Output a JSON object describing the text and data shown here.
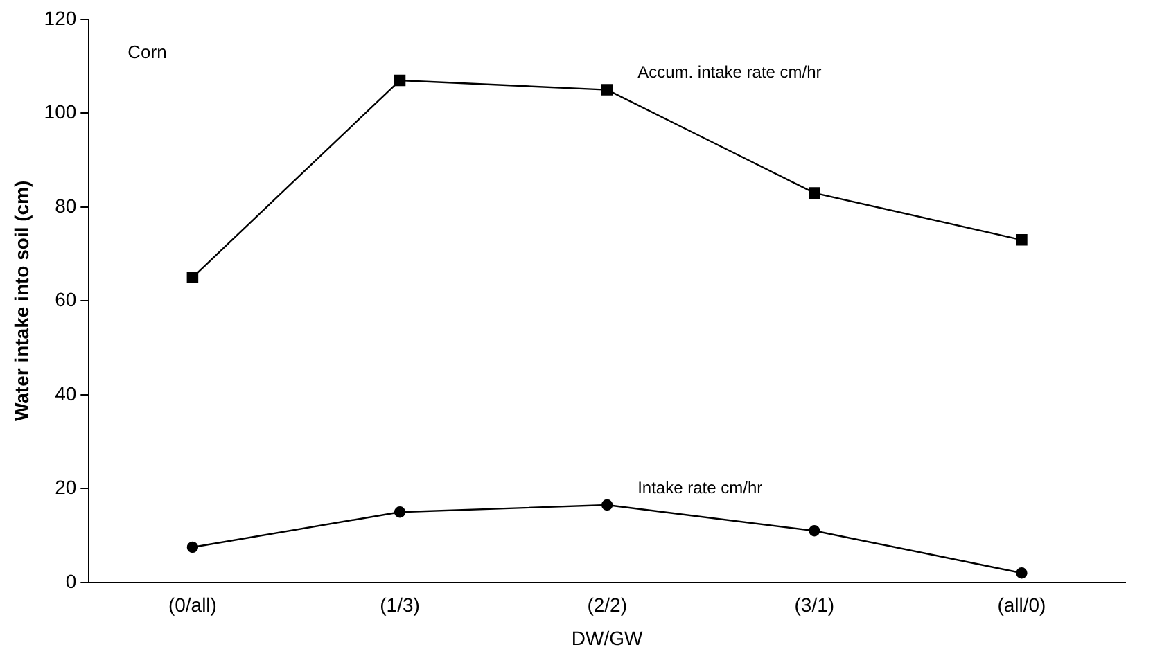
{
  "chart_data": {
    "type": "line",
    "xlabel": "DW/GW",
    "ylabel": "Water intake into soil (cm)",
    "categories": [
      "(0/all)",
      "(1/3)",
      "(2/2)",
      "(3/1)",
      "(all/0)"
    ],
    "series": [
      {
        "name": "Accum. intake rate cm/hr",
        "color": "#000000",
        "marker": "square",
        "values": [
          65,
          107,
          105,
          83,
          73
        ]
      },
      {
        "name": "Intake rate cm/hr",
        "color": "#000000",
        "marker": "circle",
        "values": [
          7.5,
          15,
          16.5,
          11,
          2
        ]
      }
    ],
    "ylim": [
      0,
      120
    ],
    "yticks": [
      0,
      20,
      40,
      60,
      80,
      100,
      120
    ],
    "grid": false,
    "legend": false,
    "annotations": [
      "Corn"
    ]
  }
}
